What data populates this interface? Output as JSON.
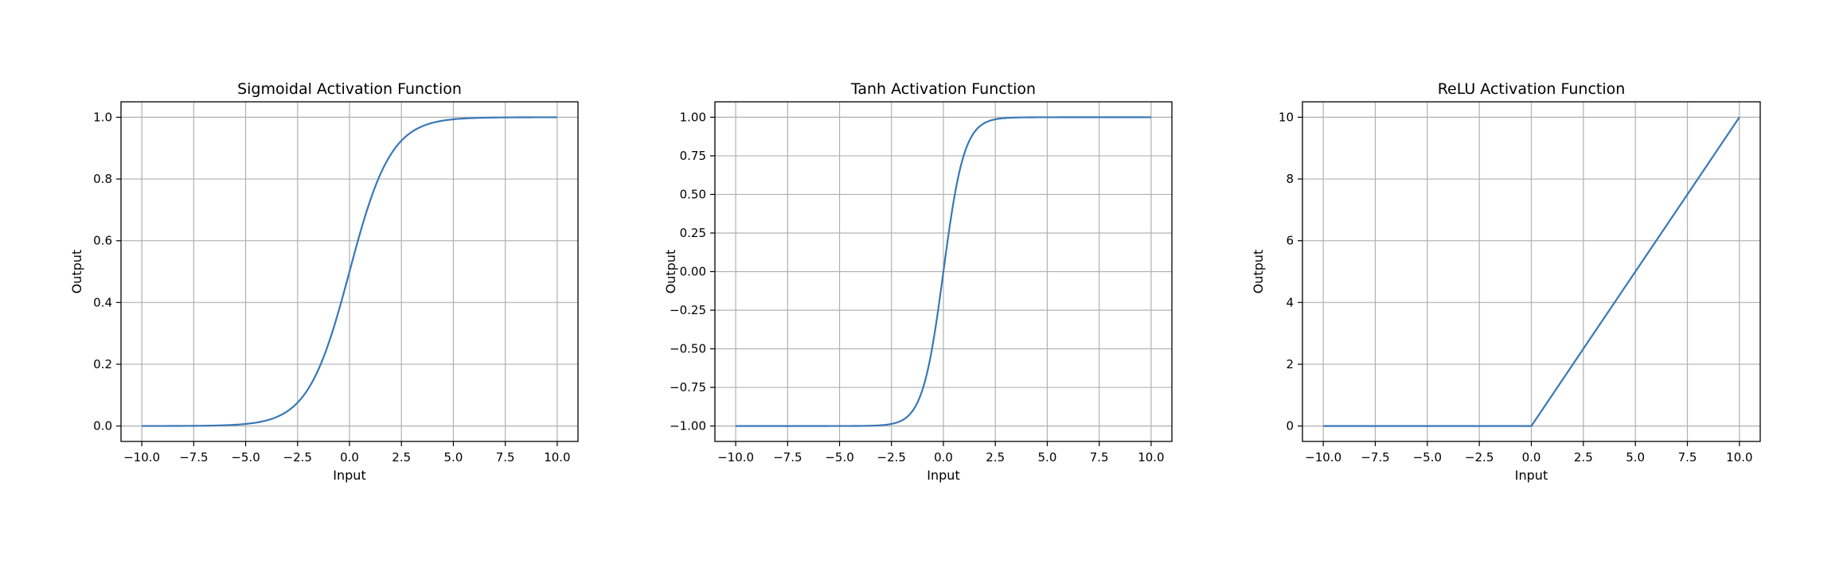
{
  "colors": {
    "line": "#3a78b5",
    "grid": "#b0b0b0",
    "frame": "#000000",
    "background": "#ffffff"
  },
  "chart_data": [
    {
      "type": "line",
      "function": "sigmoid",
      "title": "Sigmoidal Activation Function",
      "xlabel": "Input",
      "ylabel": "Output",
      "xlim": [
        -11,
        11
      ],
      "ylim": [
        -0.05,
        1.05
      ],
      "xticks": [
        -10.0,
        -7.5,
        -5.0,
        -2.5,
        0.0,
        2.5,
        5.0,
        7.5,
        10.0
      ],
      "xtick_labels": [
        "−10.0",
        "−7.5",
        "−5.0",
        "−2.5",
        "0.0",
        "2.5",
        "5.0",
        "7.5",
        "10.0"
      ],
      "yticks": [
        0.0,
        0.2,
        0.4,
        0.6,
        0.8,
        1.0
      ],
      "ytick_labels": [
        "0.0",
        "0.2",
        "0.4",
        "0.6",
        "0.8",
        "1.0"
      ],
      "grid": true,
      "series": [
        {
          "x": [
            -10,
            -7.5,
            -5,
            -4,
            -3,
            -2.5,
            -2,
            -1.5,
            -1,
            -0.5,
            0,
            0.5,
            1,
            1.5,
            2,
            2.5,
            3,
            4,
            5,
            7.5,
            10
          ],
          "y": [
            0.0,
            0.0006,
            0.0067,
            0.018,
            0.047,
            0.076,
            0.119,
            0.182,
            0.269,
            0.378,
            0.5,
            0.622,
            0.731,
            0.818,
            0.881,
            0.924,
            0.953,
            0.982,
            0.993,
            0.9994,
            1.0
          ]
        }
      ]
    },
    {
      "type": "line",
      "function": "tanh",
      "title": "Tanh Activation Function",
      "xlabel": "Input",
      "ylabel": "Output",
      "xlim": [
        -11,
        11
      ],
      "ylim": [
        -1.1,
        1.1
      ],
      "xticks": [
        -10.0,
        -7.5,
        -5.0,
        -2.5,
        0.0,
        2.5,
        5.0,
        7.5,
        10.0
      ],
      "xtick_labels": [
        "−10.0",
        "−7.5",
        "−5.0",
        "−2.5",
        "0.0",
        "2.5",
        "5.0",
        "7.5",
        "10.0"
      ],
      "yticks": [
        -1.0,
        -0.75,
        -0.5,
        -0.25,
        0.0,
        0.25,
        0.5,
        0.75,
        1.0
      ],
      "ytick_labels": [
        "−1.00",
        "−0.75",
        "−0.50",
        "−0.25",
        "0.00",
        "0.25",
        "0.50",
        "0.75",
        "1.00"
      ],
      "grid": true,
      "series": [
        {
          "x": [
            -10,
            -5,
            -3,
            -2.5,
            -2,
            -1.5,
            -1,
            -0.75,
            -0.5,
            -0.25,
            0,
            0.25,
            0.5,
            0.75,
            1,
            1.5,
            2,
            2.5,
            3,
            5,
            10
          ],
          "y": [
            -1.0,
            -0.9999,
            -0.995,
            -0.987,
            -0.964,
            -0.905,
            -0.762,
            -0.635,
            -0.462,
            -0.245,
            0.0,
            0.245,
            0.462,
            0.635,
            0.762,
            0.905,
            0.964,
            0.987,
            0.995,
            0.9999,
            1.0
          ]
        }
      ]
    },
    {
      "type": "line",
      "function": "relu",
      "title": "ReLU Activation Function",
      "xlabel": "Input",
      "ylabel": "Output",
      "xlim": [
        -11,
        11
      ],
      "ylim": [
        -0.5,
        10.5
      ],
      "xticks": [
        -10.0,
        -7.5,
        -5.0,
        -2.5,
        0.0,
        2.5,
        5.0,
        7.5,
        10.0
      ],
      "xtick_labels": [
        "−10.0",
        "−7.5",
        "−5.0",
        "−2.5",
        "0.0",
        "2.5",
        "5.0",
        "7.5",
        "10.0"
      ],
      "yticks": [
        0,
        2,
        4,
        6,
        8,
        10
      ],
      "ytick_labels": [
        "0",
        "2",
        "4",
        "6",
        "8",
        "10"
      ],
      "grid": true,
      "series": [
        {
          "x": [
            -10,
            -5,
            -0.1,
            0,
            0.1,
            2.5,
            5,
            7.5,
            10
          ],
          "y": [
            0,
            0,
            0,
            0,
            0.1,
            2.5,
            5,
            7.5,
            10
          ]
        }
      ]
    }
  ]
}
